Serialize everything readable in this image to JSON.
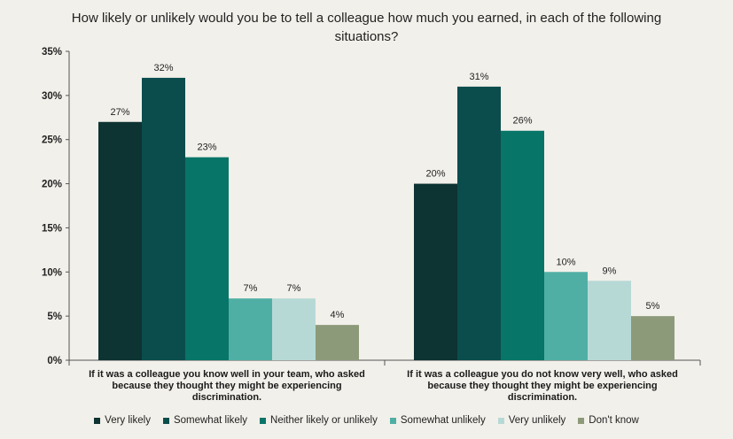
{
  "chart_data": {
    "type": "bar",
    "title": "How likely or unlikely would you be to tell a colleague how much you earned, in each of the following situations?",
    "categories": [
      "If it was a colleague you know well in your team, who asked because they thought they might be experiencing discrimination.",
      "If it was a colleague you do not know very well, who asked because they thought they might be experiencing discrimination."
    ],
    "series": [
      {
        "name": "Very likely",
        "color": "#0d3333",
        "values": [
          27,
          20
        ]
      },
      {
        "name": "Somewhat likely",
        "color": "#0b4d4d",
        "values": [
          32,
          31
        ]
      },
      {
        "name": "Neither likely or unlikely",
        "color": "#077568",
        "values": [
          23,
          26
        ]
      },
      {
        "name": "Somewhat unlikely",
        "color": "#4fafa5",
        "values": [
          7,
          10
        ]
      },
      {
        "name": "Very unlikely",
        "color": "#b7d9d6",
        "values": [
          7,
          9
        ]
      },
      {
        "name": "Don't know",
        "color": "#8d9a7a",
        "values": [
          4,
          5
        ]
      }
    ],
    "data_labels": [
      [
        "27%",
        "32%",
        "23%",
        "7%",
        "7%",
        "4%"
      ],
      [
        "20%",
        "31%",
        "26%",
        "10%",
        "9%",
        "5%"
      ]
    ],
    "ylim": [
      0,
      35
    ],
    "yticks": [
      "0%",
      "5%",
      "10%",
      "15%",
      "20%",
      "25%",
      "30%",
      "35%"
    ],
    "grid": false,
    "legend_position": "bottom",
    "xlabel": "",
    "ylabel": ""
  }
}
